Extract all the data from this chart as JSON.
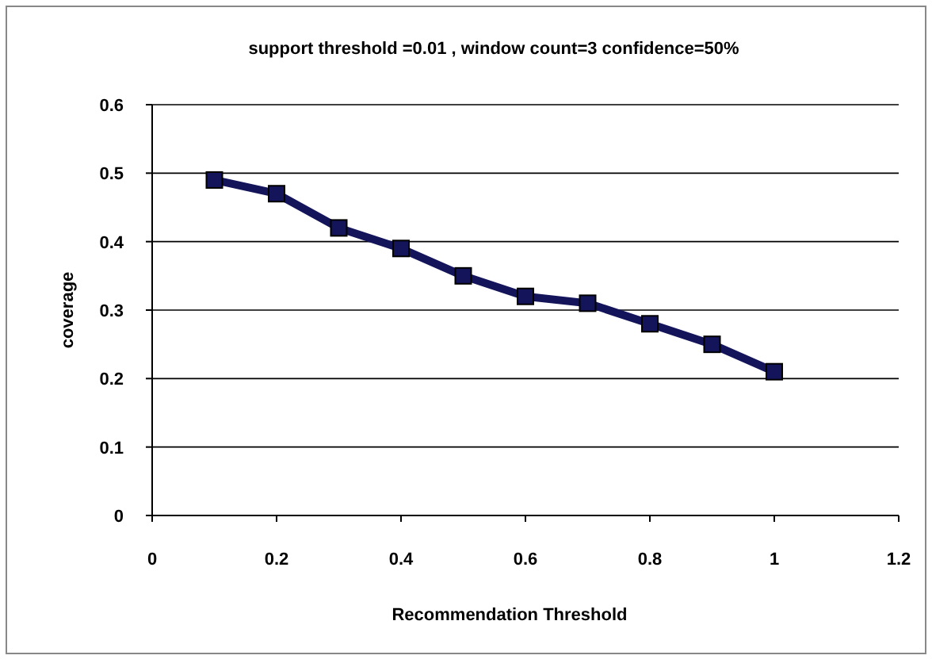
{
  "chart_data": {
    "type": "line",
    "title": "support threshold =0.01 , window count=3 confidence=50%",
    "xlabel": "Recommendation Threshold",
    "ylabel": "coverage",
    "x": [
      0.1,
      0.2,
      0.3,
      0.4,
      0.5,
      0.6,
      0.7,
      0.8,
      0.9,
      1
    ],
    "series": [
      {
        "color": "#14145a",
        "values": [
          0.49,
          0.47,
          0.42,
          0.39,
          0.35,
          0.32,
          0.31,
          0.28,
          0.25,
          0.21
        ]
      }
    ],
    "xlim": [
      0,
      1.2
    ],
    "xticks": [
      0,
      0.2,
      0.4,
      0.6,
      0.8,
      1,
      1.2
    ],
    "ylim": [
      0,
      0.6
    ],
    "yticks": [
      0,
      0.1,
      0.2,
      0.3,
      0.4,
      0.5,
      0.6
    ],
    "grid": "y",
    "marker": "square",
    "line_style": "solid"
  }
}
